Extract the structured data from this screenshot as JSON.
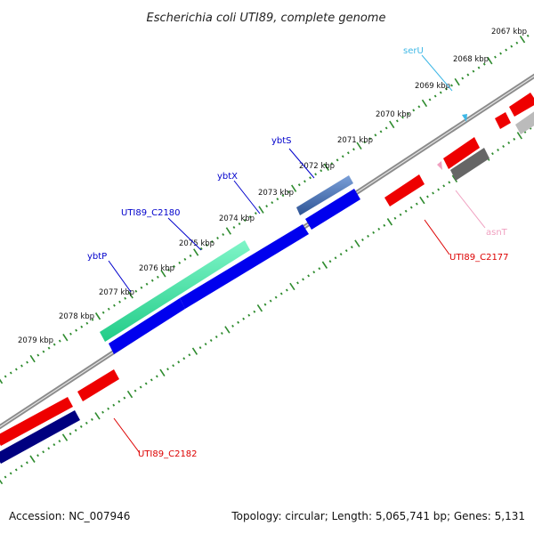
{
  "title": "Escherichia coli UTI89, complete genome",
  "footer": {
    "accession": "Accession: NC_007946",
    "summary": "Topology: circular; Length: 5,065,741 bp; Genes: 5,131"
  },
  "colors": {
    "backbone": "#8c8c8c",
    "tick": "#2e8b2e",
    "forward_cds": "#0000ee",
    "reverse_cds": "#ee0000",
    "dark_cds": "#000080",
    "teal_cds": "#33dd99",
    "steel_cds": "#4a6fb0",
    "grey_cds": "#666666",
    "light_grey_cds": "#bbbbbb",
    "label_blue": "#0000cc",
    "label_red": "#dd0000",
    "label_cyan": "#3fb8e6",
    "label_pink": "#f0a0c0"
  },
  "kbp_labels": [
    "2067 kbp",
    "2068 kbp",
    "2069 kbp",
    "2070 kbp",
    "2071 kbp",
    "2072 kbp",
    "2073 kbp",
    "2074 kbp",
    "2075 kbp",
    "2076 kbp",
    "2077 kbp",
    "2078 kbp",
    "2079 kbp"
  ],
  "gene_labels": {
    "serU": "serU",
    "ybtS": "ybtS",
    "ybtX": "ybtX",
    "UTI89_C2180": "UTI89_C2180",
    "ybtP": "ybtP",
    "asnT": "asnT",
    "UTI89_C2177": "UTI89_C2177",
    "UTI89_C2182": "UTI89_C2182"
  }
}
